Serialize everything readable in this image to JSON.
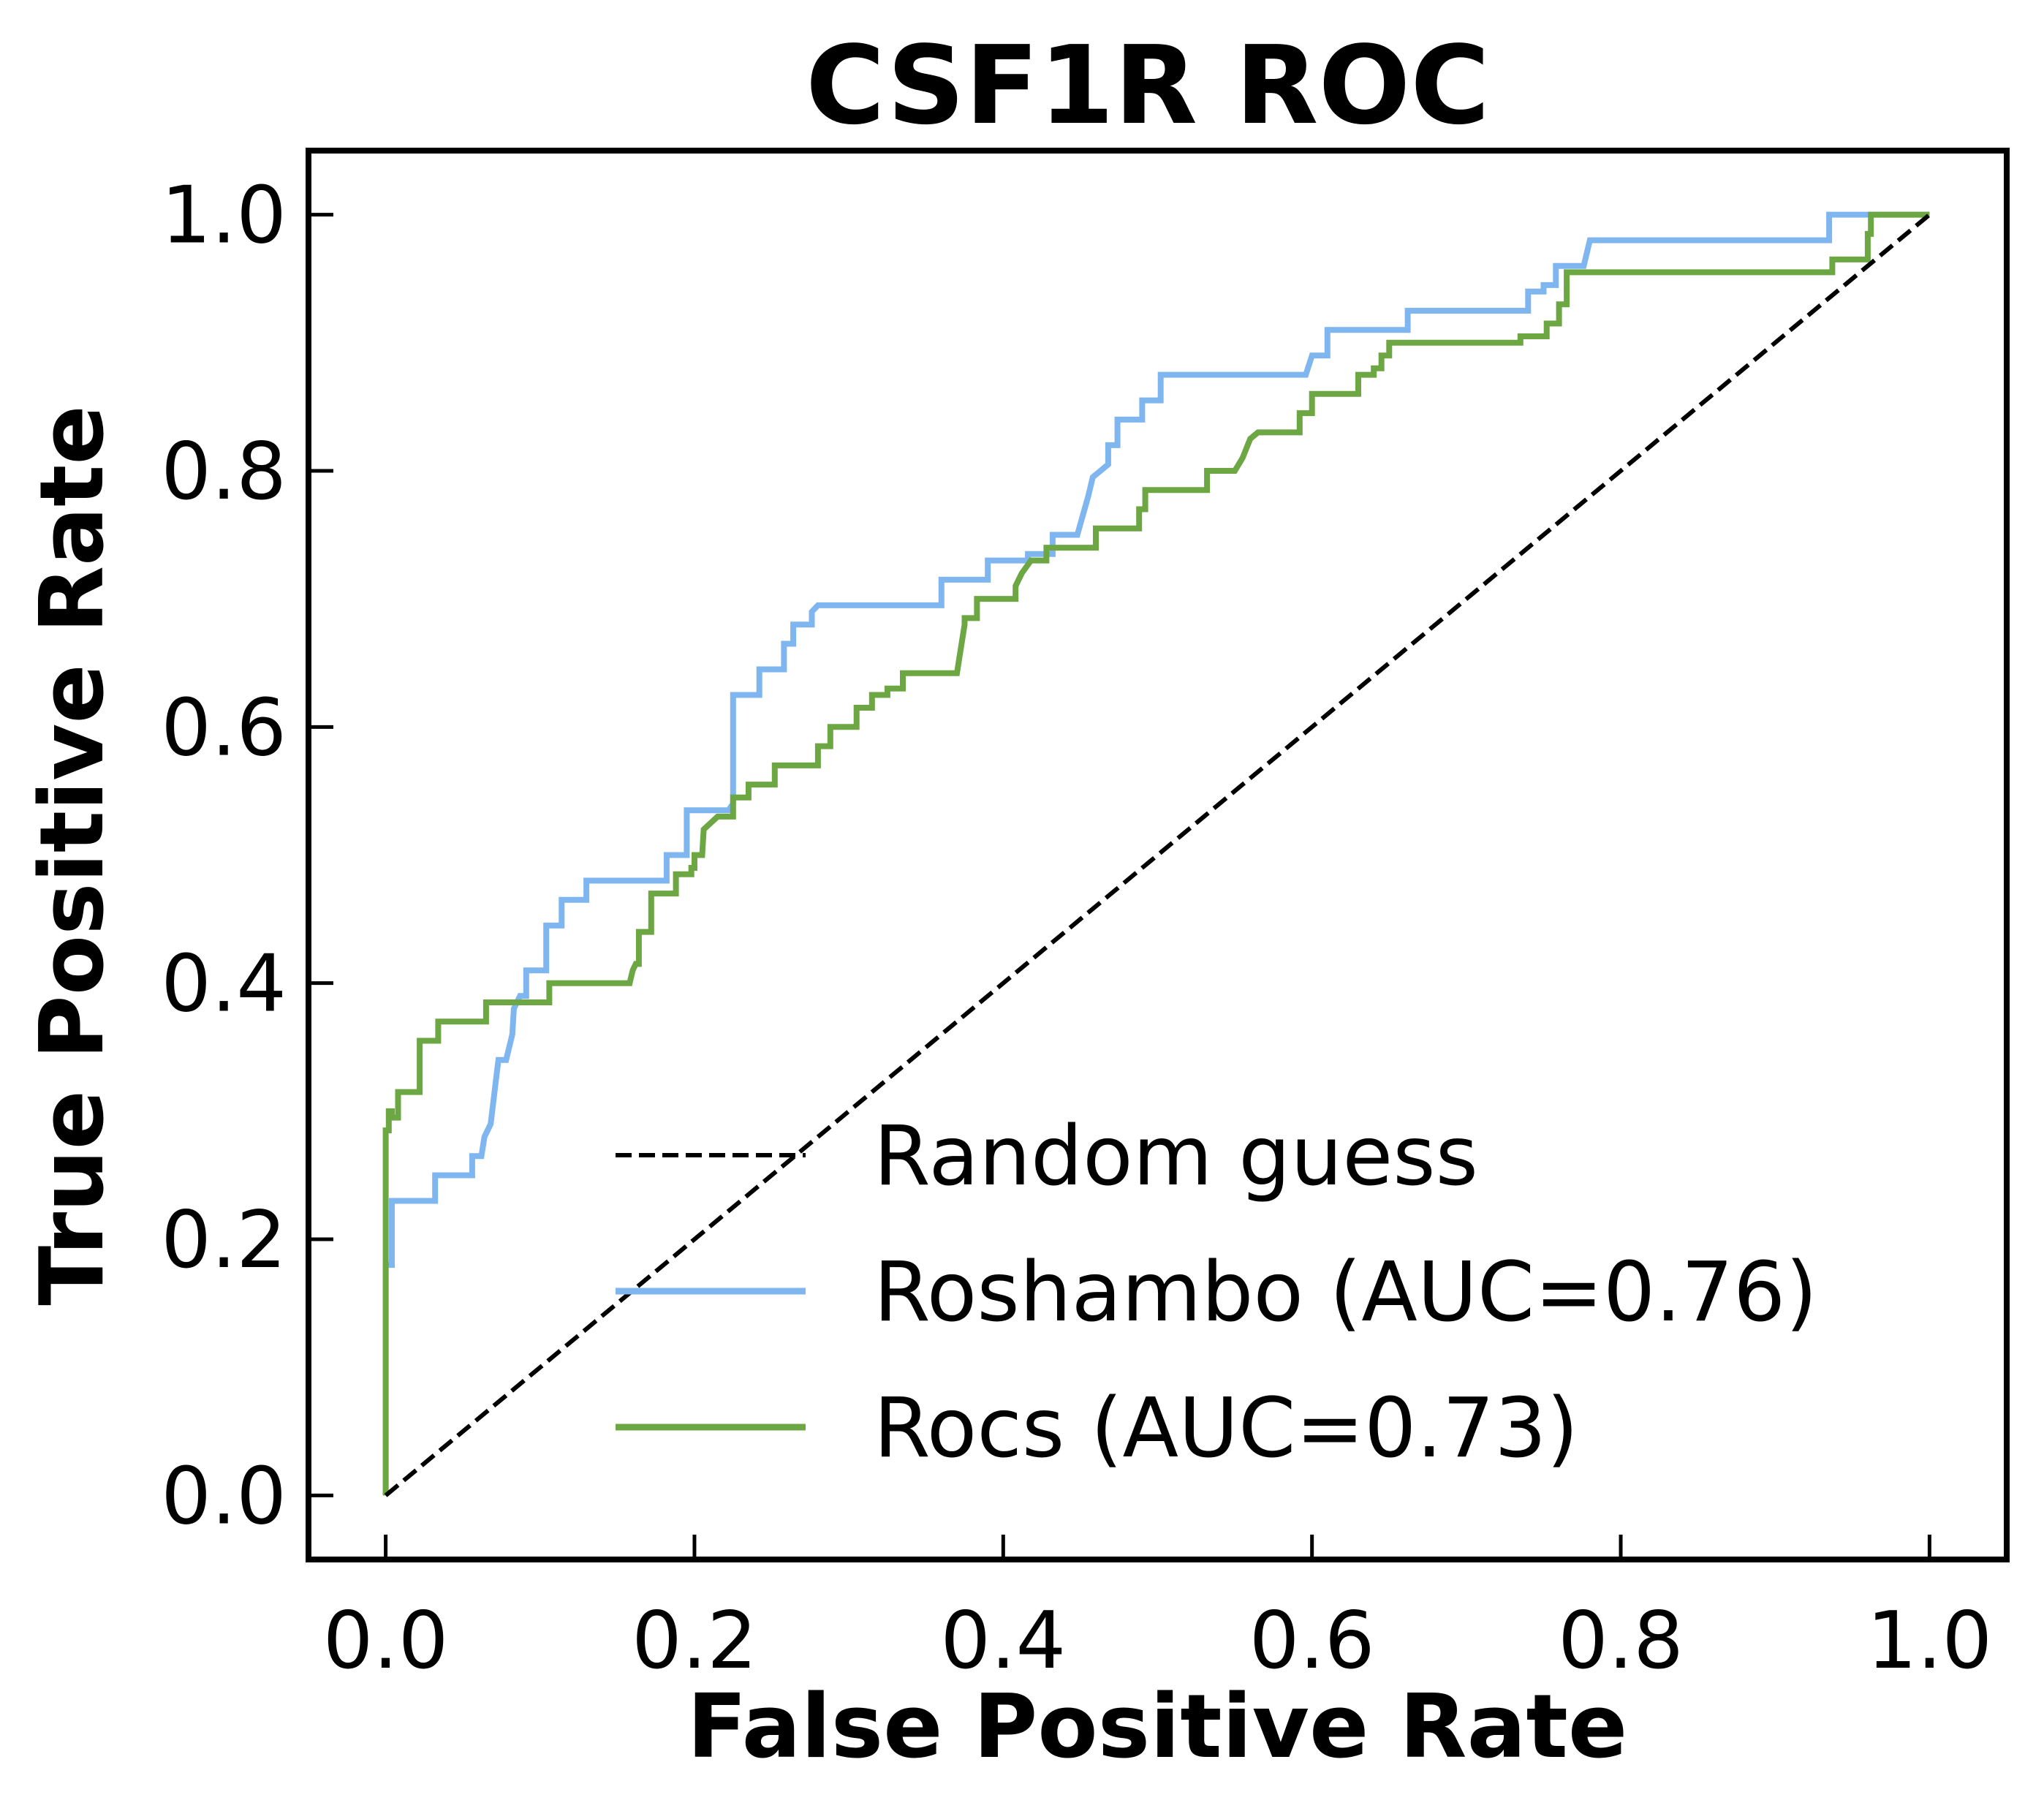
{
  "chart_data": {
    "type": "line",
    "title": "CSF1R ROC",
    "xlabel": "False Positive Rate",
    "ylabel": "True Positive Rate",
    "xlim": [
      -0.05,
      1.05
    ],
    "ylim": [
      -0.05,
      1.05
    ],
    "xticks": [
      "0.0",
      "0.2",
      "0.4",
      "0.6",
      "0.8",
      "1.0"
    ],
    "yticks": [
      "0.0",
      "0.2",
      "0.4",
      "0.6",
      "0.8",
      "1.0"
    ],
    "xtick_values": [
      0,
      0.2,
      0.4,
      0.6,
      0.8,
      1.0
    ],
    "ytick_values": [
      0,
      0.2,
      0.4,
      0.6,
      0.8,
      1.0
    ],
    "grid": false,
    "legend_position": "lower-right",
    "series": [
      {
        "name": "Random guess",
        "color": "#000000",
        "style": "dashed",
        "x": [
          0,
          1
        ],
        "y": [
          0,
          1
        ]
      },
      {
        "name": "Roshambo (AUC=0.76)",
        "color": "#7fb6f0",
        "style": "solid",
        "x": [
          0,
          0,
          0.004,
          0.004,
          0.032,
          0.032,
          0.056,
          0.056,
          0.062,
          0.064,
          0.068,
          0.072,
          0.073,
          0.078,
          0.082,
          0.083,
          0.087,
          0.091,
          0.091,
          0.104,
          0.104,
          0.114,
          0.114,
          0.13,
          0.13,
          0.182,
          0.182,
          0.195,
          0.195,
          0.222,
          0.225,
          0.225,
          0.242,
          0.242,
          0.258,
          0.258,
          0.264,
          0.264,
          0.276,
          0.276,
          0.28,
          0.288,
          0.36,
          0.36,
          0.39,
          0.39,
          0.416,
          0.416,
          0.432,
          0.432,
          0.448,
          0.455,
          0.458,
          0.468,
          0.468,
          0.474,
          0.474,
          0.49,
          0.49,
          0.502,
          0.502,
          0.53,
          0.53,
          0.596,
          0.6,
          0.61,
          0.61,
          0.662,
          0.662,
          0.74,
          0.74,
          0.75,
          0.75,
          0.758,
          0.758,
          0.776,
          0.78,
          0.78,
          0.935,
          0.935,
          0.96,
          0.96,
          1.0
        ],
        "y": [
          0,
          0.18,
          0.18,
          0.23,
          0.23,
          0.25,
          0.25,
          0.265,
          0.265,
          0.28,
          0.29,
          0.33,
          0.34,
          0.34,
          0.36,
          0.38,
          0.39,
          0.39,
          0.41,
          0.41,
          0.445,
          0.445,
          0.465,
          0.465,
          0.48,
          0.48,
          0.5,
          0.5,
          0.535,
          0.535,
          0.54,
          0.625,
          0.625,
          0.645,
          0.645,
          0.665,
          0.665,
          0.68,
          0.68,
          0.69,
          0.695,
          0.695,
          0.695,
          0.715,
          0.715,
          0.73,
          0.73,
          0.735,
          0.735,
          0.75,
          0.75,
          0.78,
          0.795,
          0.805,
          0.82,
          0.82,
          0.84,
          0.84,
          0.855,
          0.855,
          0.875,
          0.875,
          0.875,
          0.875,
          0.89,
          0.89,
          0.91,
          0.91,
          0.925,
          0.925,
          0.94,
          0.94,
          0.945,
          0.945,
          0.96,
          0.96,
          0.98,
          0.98,
          0.98,
          1.0,
          1.0,
          1.0,
          1.0
        ]
      },
      {
        "name": "Rocs (AUC=0.73)",
        "color": "#6ca744",
        "style": "solid",
        "x": [
          0,
          0,
          0.002,
          0.002,
          0.004,
          0.004,
          0.008,
          0.008,
          0.013,
          0.013,
          0.015,
          0.015,
          0.022,
          0.022,
          0.034,
          0.034,
          0.038,
          0.038,
          0.065,
          0.065,
          0.106,
          0.106,
          0.158,
          0.16,
          0.162,
          0.164,
          0.164,
          0.172,
          0.172,
          0.188,
          0.188,
          0.198,
          0.198,
          0.2,
          0.2,
          0.205,
          0.206,
          0.215,
          0.22,
          0.225,
          0.225,
          0.235,
          0.235,
          0.252,
          0.252,
          0.275,
          0.275,
          0.28,
          0.28,
          0.288,
          0.288,
          0.305,
          0.305,
          0.31,
          0.31,
          0.315,
          0.315,
          0.325,
          0.325,
          0.335,
          0.335,
          0.345,
          0.345,
          0.37,
          0.375,
          0.375,
          0.383,
          0.383,
          0.39,
          0.39,
          0.408,
          0.408,
          0.412,
          0.418,
          0.418,
          0.428,
          0.428,
          0.436,
          0.436,
          0.46,
          0.46,
          0.476,
          0.476,
          0.488,
          0.488,
          0.492,
          0.492,
          0.5,
          0.5,
          0.51,
          0.51,
          0.532,
          0.532,
          0.55,
          0.55,
          0.555,
          0.56,
          0.565,
          0.565,
          0.592,
          0.592,
          0.6,
          0.6,
          0.625,
          0.625,
          0.63,
          0.63,
          0.635,
          0.635,
          0.64,
          0.64,
          0.645,
          0.645,
          0.65,
          0.65,
          0.73,
          0.73,
          0.735,
          0.735,
          0.752,
          0.752,
          0.76,
          0.76,
          0.76,
          0.765,
          0.765,
          0.8,
          0.8,
          0.88,
          0.88,
          0.885,
          0.885,
          0.937,
          0.937,
          0.96,
          0.96,
          0.962,
          0.962,
          1.0
        ],
        "y": [
          0,
          0.285,
          0.285,
          0.3,
          0.3,
          0.295,
          0.295,
          0.315,
          0.315,
          0.315,
          0.315,
          0.315,
          0.315,
          0.355,
          0.355,
          0.37,
          0.37,
          0.37,
          0.37,
          0.385,
          0.385,
          0.4,
          0.4,
          0.41,
          0.415,
          0.415,
          0.44,
          0.44,
          0.47,
          0.47,
          0.485,
          0.485,
          0.49,
          0.49,
          0.5,
          0.5,
          0.52,
          0.53,
          0.53,
          0.53,
          0.545,
          0.545,
          0.555,
          0.555,
          0.57,
          0.57,
          0.57,
          0.57,
          0.585,
          0.585,
          0.6,
          0.6,
          0.615,
          0.615,
          0.615,
          0.615,
          0.625,
          0.625,
          0.63,
          0.63,
          0.642,
          0.642,
          0.642,
          0.642,
          0.68,
          0.685,
          0.685,
          0.7,
          0.7,
          0.7,
          0.7,
          0.71,
          0.72,
          0.73,
          0.73,
          0.73,
          0.74,
          0.74,
          0.74,
          0.74,
          0.755,
          0.755,
          0.755,
          0.755,
          0.77,
          0.77,
          0.785,
          0.785,
          0.785,
          0.785,
          0.785,
          0.785,
          0.8,
          0.8,
          0.8,
          0.81,
          0.825,
          0.83,
          0.83,
          0.83,
          0.845,
          0.845,
          0.86,
          0.86,
          0.86,
          0.86,
          0.875,
          0.875,
          0.875,
          0.875,
          0.88,
          0.88,
          0.89,
          0.89,
          0.9,
          0.9,
          0.9,
          0.9,
          0.905,
          0.905,
          0.915,
          0.915,
          0.915,
          0.93,
          0.93,
          0.955,
          0.955,
          0.955,
          0.955,
          0.955,
          0.955,
          0.955,
          0.955,
          0.965,
          0.965,
          0.985,
          0.985,
          1.0,
          1.0
        ]
      }
    ]
  }
}
